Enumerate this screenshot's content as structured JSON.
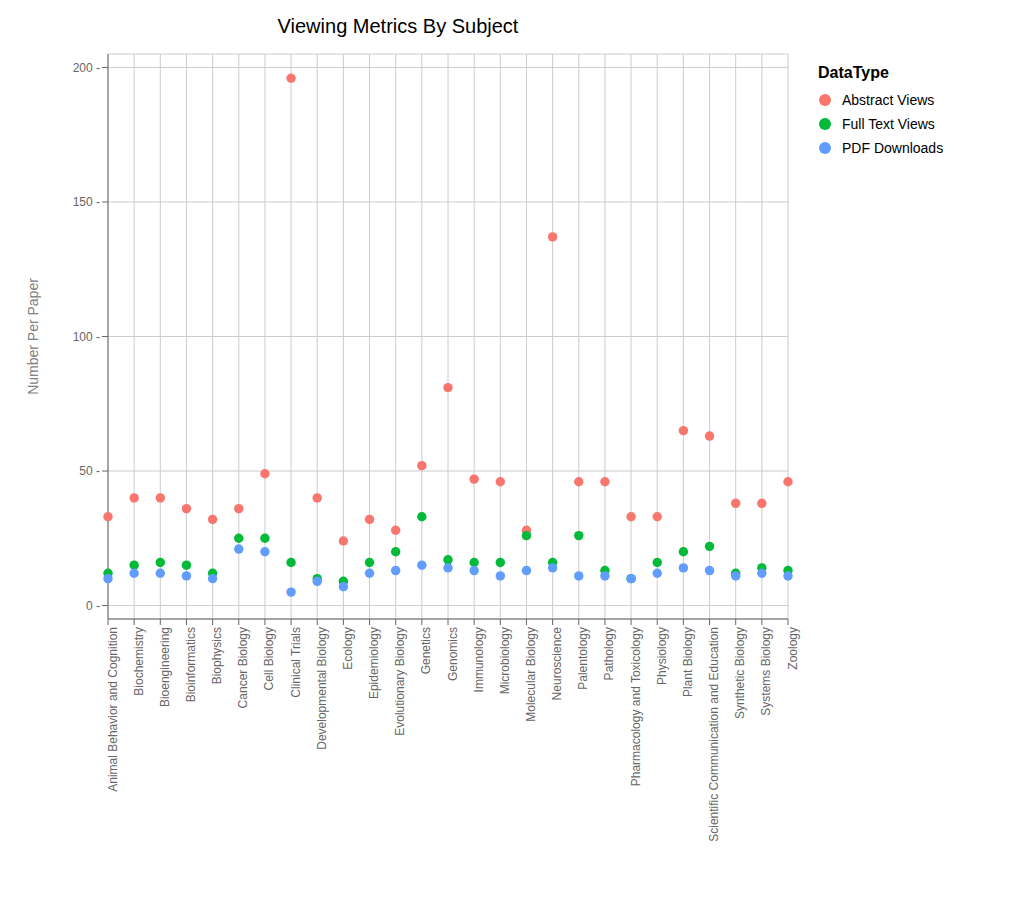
{
  "chart_data": {
    "type": "scatter",
    "title": "Viewing Metrics By Subject",
    "ylabel": "Number Per Paper",
    "legend_title": "DataType",
    "categories": [
      "Animal Behavior and Cognition",
      "Biochemistry",
      "Bioengineering",
      "Bioinformatics",
      "Biophysics",
      "Cancer Biology",
      "Cell Biology",
      "Clinical Trials",
      "Developmental Biology",
      "Ecology",
      "Epidemiology",
      "Evolutionary Biology",
      "Genetics",
      "Genomics",
      "Immunology",
      "Microbiology",
      "Molecular Biology",
      "Neuroscience",
      "Palentology",
      "Pathology",
      "Pharmacology and Toxicology",
      "Physiology",
      "Plant Biology",
      "Scientific Communication and Education",
      "Synthetic Biology",
      "Systems Biology",
      "Zoology"
    ],
    "series": [
      {
        "name": "Abstract Views",
        "color": "#F8766D",
        "values": [
          33,
          40,
          40,
          36,
          32,
          36,
          49,
          196,
          40,
          24,
          32,
          28,
          52,
          81,
          47,
          46,
          28,
          137,
          46,
          46,
          33,
          33,
          65,
          63,
          38,
          38,
          46
        ]
      },
      {
        "name": "Full Text Views",
        "color": "#00BA38",
        "values": [
          12,
          15,
          16,
          15,
          12,
          25,
          25,
          16,
          10,
          9,
          16,
          20,
          33,
          17,
          16,
          16,
          26,
          16,
          26,
          13,
          10,
          16,
          20,
          22,
          12,
          14,
          13
        ]
      },
      {
        "name": "PDF Downloads",
        "color": "#619CFF",
        "values": [
          10,
          12,
          12,
          11,
          10,
          21,
          20,
          5,
          9,
          7,
          12,
          13,
          15,
          14,
          13,
          11,
          13,
          14,
          11,
          11,
          10,
          12,
          14,
          13,
          11,
          12,
          11
        ]
      }
    ],
    "ylim": [
      -5,
      205
    ],
    "yticks": [
      {
        "value": 0,
        "label": "0 -"
      },
      {
        "value": 50,
        "label": "50 -"
      },
      {
        "value": 100,
        "label": "100 -"
      },
      {
        "value": 150,
        "label": "150 -"
      },
      {
        "value": 200,
        "label": "200 -"
      }
    ],
    "grid": true,
    "legend": "right"
  }
}
